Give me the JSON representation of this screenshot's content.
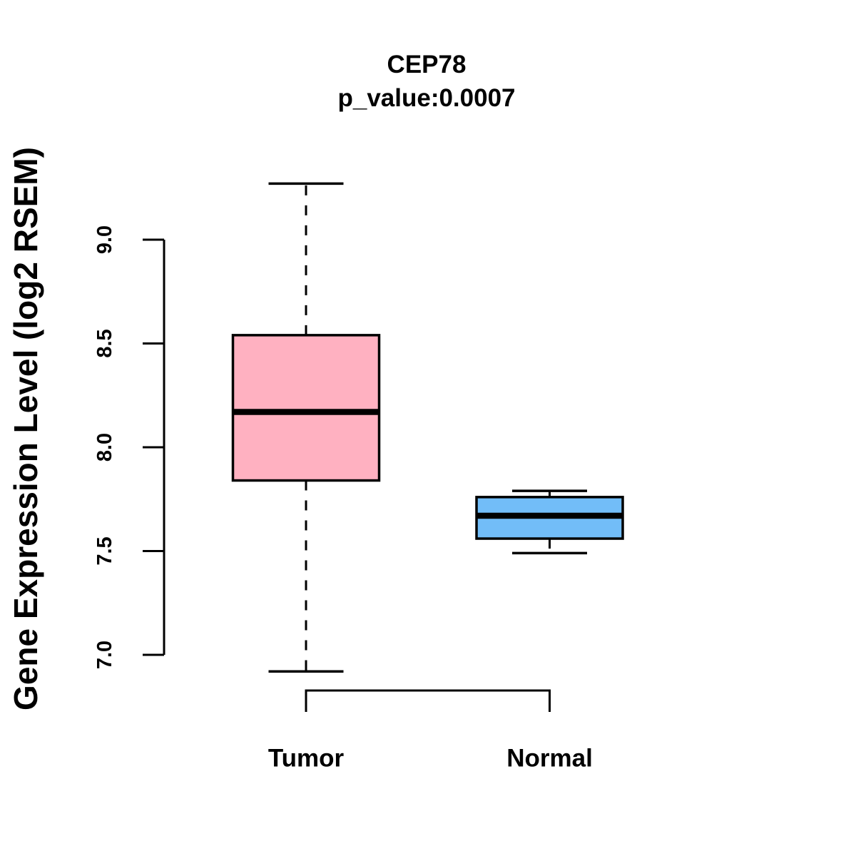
{
  "figure": {
    "background": "#ffffff",
    "text_color": "#000000"
  },
  "chart_data": {
    "type": "boxplot",
    "title": "CEP78",
    "subtitle": "p_value:0.0007",
    "ylabel": "Gene Expression Level (log2 RSEM)",
    "xlabel": "",
    "categories": [
      "Tumor",
      "Normal"
    ],
    "y_ticks": [
      7.0,
      7.5,
      8.0,
      8.5,
      9.0
    ],
    "ylim": [
      6.8,
      9.35
    ],
    "grid": false,
    "legend": "none",
    "series": [
      {
        "name": "Tumor",
        "fill": "#ffb1c1",
        "whisker_low": 6.92,
        "q1": 7.84,
        "median": 8.17,
        "q3": 8.54,
        "whisker_high": 9.27
      },
      {
        "name": "Normal",
        "fill": "#72bdf8",
        "whisker_low": 7.49,
        "q1": 7.56,
        "median": 7.67,
        "q3": 7.76,
        "whisker_high": 7.79
      }
    ],
    "comparison_bracket": {
      "between": [
        "Tumor",
        "Normal"
      ]
    }
  }
}
